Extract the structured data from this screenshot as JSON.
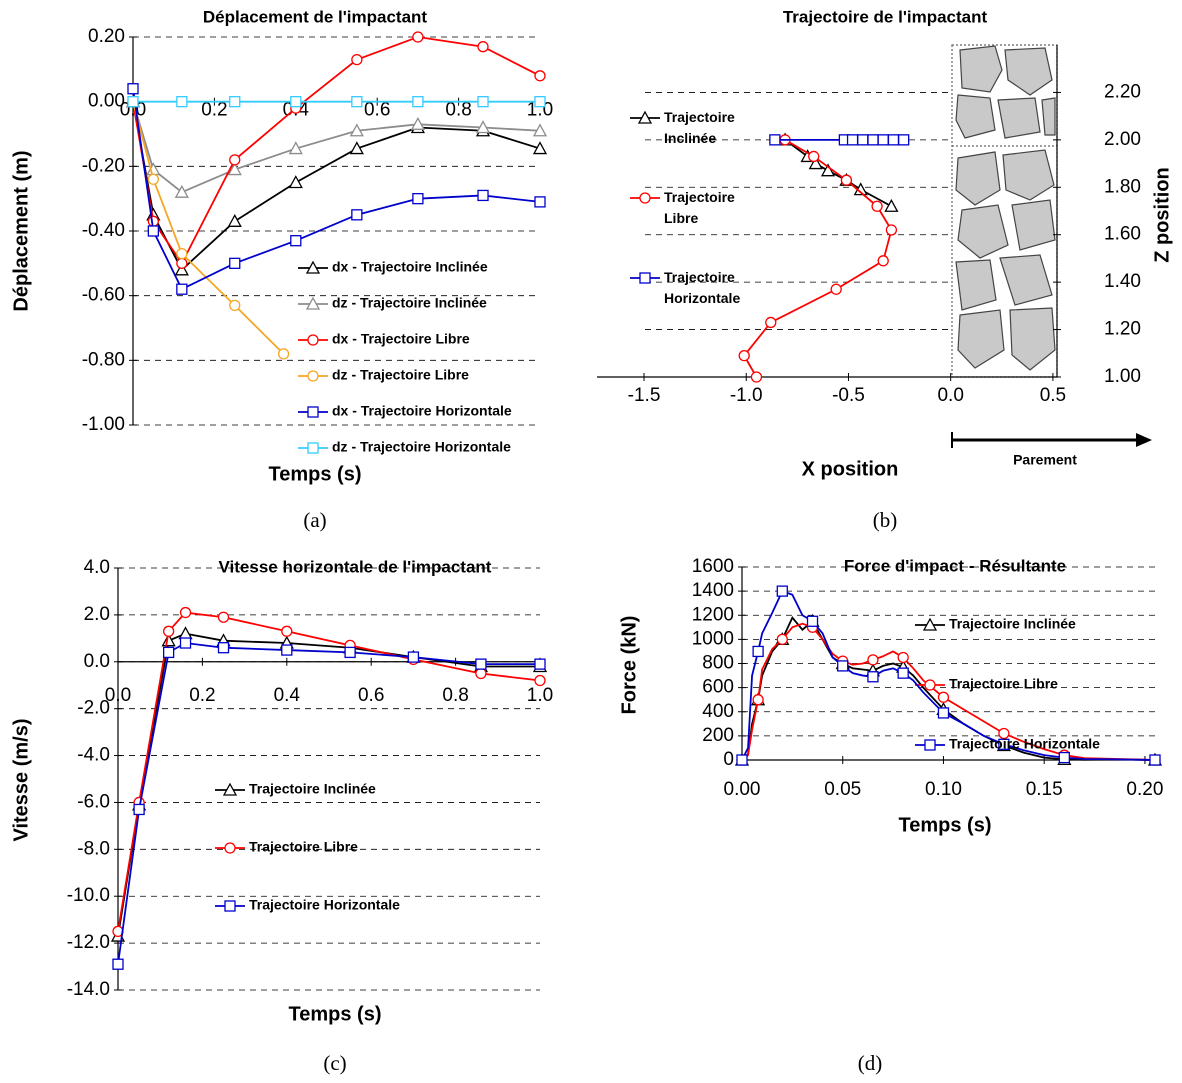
{
  "chart_data": [
    {
      "type": "line",
      "title": "Déplacement de l'impactant",
      "x_label": "Temps (s)",
      "y_label": "Déplacement (m)",
      "caption": "(a)",
      "xlim": [
        0,
        1.0
      ],
      "ylim": [
        -1.0,
        0.2
      ],
      "xticks": [
        {
          "value": 0,
          "label": "0.0"
        },
        0.2,
        0.4,
        0.6,
        0.8,
        {
          "value": 1,
          "label": "1.0"
        }
      ],
      "yticks": [
        {
          "value": -1,
          "label": "-1.00"
        },
        {
          "value": -0.8,
          "label": "-0.80"
        },
        {
          "value": -0.6,
          "label": "-0.60"
        },
        {
          "value": -0.4,
          "label": "-0.40"
        },
        {
          "value": -0.2,
          "label": "-0.20"
        },
        {
          "value": 0,
          "label": "0.00"
        },
        {
          "value": 0.2,
          "label": "0.20"
        }
      ],
      "grid": true,
      "legend": "lower right",
      "series": [
        {
          "name": "dx - Trajectoire Inclinée",
          "color": "#000000",
          "marker": "triangle",
          "x": [
            0,
            0.05,
            0.12,
            0.25,
            0.4,
            0.55,
            0.7,
            0.86,
            1
          ],
          "values": [
            0,
            -0.35,
            -0.52,
            -0.37,
            -0.25,
            -0.145,
            -0.08,
            -0.09,
            -0.145
          ]
        },
        {
          "name": "dz - Trajectoire Inclinée",
          "color": "#8c8c8c",
          "marker": "triangle",
          "x": [
            0,
            0.05,
            0.12,
            0.25,
            0.4,
            0.55,
            0.7,
            0.86,
            1
          ],
          "values": [
            0,
            -0.21,
            -0.28,
            -0.21,
            -0.145,
            -0.09,
            -0.07,
            -0.08,
            -0.09
          ]
        },
        {
          "name": "dx - Trajectoire Libre",
          "color": "#ff0000",
          "marker": "circle",
          "x": [
            0,
            0.05,
            0.12,
            0.25,
            0.4,
            0.55,
            0.7,
            0.86,
            1
          ],
          "values": [
            0,
            -0.37,
            -0.5,
            -0.18,
            -0.02,
            0.13,
            0.2,
            0.17,
            0.08
          ]
        },
        {
          "name": "dz - Trajectoire Libre",
          "color": "#f5a623",
          "marker": "circle",
          "x": [
            0,
            0.05,
            0.12,
            0.25,
            0.37
          ],
          "values": [
            0,
            -0.24,
            -0.47,
            -0.63,
            -0.78
          ]
        },
        {
          "name": "dx - Trajectoire Horizontale",
          "color": "#0000cc",
          "marker": "square",
          "x": [
            0,
            0.05,
            0.12,
            0.25,
            0.4,
            0.55,
            0.7,
            0.86,
            1
          ],
          "values": [
            0.04,
            -0.4,
            -0.58,
            -0.5,
            -0.43,
            -0.35,
            -0.3,
            -0.29,
            -0.31
          ]
        },
        {
          "name": "dz - Trajectoire Horizontale",
          "color": "#33ccff",
          "marker": "square",
          "x": [
            0,
            0.12,
            0.25,
            0.4,
            0.55,
            0.7,
            0.86,
            1
          ],
          "values": [
            0,
            0,
            0,
            0,
            0,
            0,
            0,
            0
          ]
        }
      ]
    },
    {
      "type": "line",
      "title": "Trajectoire de l'impactant",
      "x_label": "X position",
      "y_label": "Z position",
      "caption": "(b)",
      "annotation": "Parement",
      "xlim": [
        -1.73,
        0.52
      ],
      "ylim": [
        1.0,
        2.4
      ],
      "xticks": [
        -1.5,
        {
          "value": -1,
          "label": "-1.0"
        },
        -0.5,
        {
          "value": 0,
          "label": "0.0"
        },
        0.5
      ],
      "yticks": [
        {
          "value": 1,
          "label": "1.00"
        },
        {
          "value": 1.2,
          "label": "1.20"
        },
        {
          "value": 1.4,
          "label": "1.40"
        },
        {
          "value": 1.6,
          "label": "1.60"
        },
        {
          "value": 1.8,
          "label": "1.80"
        },
        {
          "value": 2,
          "label": "2.00"
        },
        {
          "value": 2.2,
          "label": "2.20"
        }
      ],
      "grid": true,
      "legend": "left",
      "y_axis_side": "right",
      "series": [
        {
          "name": "Trajectoire Inclinée",
          "color": "#000000",
          "marker": "triangle",
          "x": [
            -0.81,
            -0.7,
            -0.66,
            -0.6,
            -0.51,
            -0.44,
            -0.29
          ],
          "values": [
            2.0,
            1.93,
            1.9,
            1.87,
            1.83,
            1.79,
            1.72
          ]
        },
        {
          "name": "Trajectoire Libre",
          "color": "#ff0000",
          "marker": "circle",
          "x": [
            -0.81,
            -0.67,
            -0.51,
            -0.36,
            -0.29,
            -0.33,
            -0.56,
            -0.88,
            -1.01,
            -0.95
          ],
          "values": [
            2.0,
            1.93,
            1.83,
            1.72,
            1.62,
            1.49,
            1.37,
            1.23,
            1.09,
            1.0
          ]
        },
        {
          "name": "Trajectoire Horizontale",
          "color": "#0000cc",
          "marker": "square",
          "x": [
            -0.86,
            -0.52,
            -0.48,
            -0.43,
            -0.38,
            -0.33,
            -0.28,
            -0.23
          ],
          "values": [
            2.0,
            2.0,
            2.0,
            2.0,
            2.0,
            2.0,
            2.0,
            2.0
          ]
        }
      ]
    },
    {
      "type": "line",
      "title": "Vitesse horizontale de l'impactant",
      "x_label": "Temps (s)",
      "y_label": "Vitesse (m/s)",
      "caption": "(c)",
      "xlim": [
        0,
        1.0
      ],
      "ylim": [
        -14.0,
        4.0
      ],
      "xticks": [
        {
          "value": 0,
          "label": "0.0"
        },
        0.2,
        0.4,
        0.6,
        0.8,
        {
          "value": 1,
          "label": "1.0"
        }
      ],
      "yticks": [
        {
          "value": -14,
          "label": "-14.0"
        },
        {
          "value": -12,
          "label": "-12.0"
        },
        {
          "value": -10,
          "label": "-10.0"
        },
        {
          "value": -8,
          "label": "-8.0"
        },
        {
          "value": -6,
          "label": "-6.0"
        },
        {
          "value": -4,
          "label": "-4.0"
        },
        {
          "value": -2,
          "label": "-2.0"
        },
        {
          "value": 0,
          "label": "0.0"
        },
        {
          "value": 2,
          "label": "2.0"
        },
        {
          "value": 4,
          "label": "4.0"
        }
      ],
      "grid": true,
      "legend": "center left",
      "series": [
        {
          "name": "Trajectoire Inclinée",
          "color": "#000000",
          "marker": "triangle",
          "x": [
            0,
            0.05,
            0.12,
            0.16,
            0.25,
            0.4,
            0.55,
            0.7,
            0.86,
            1
          ],
          "values": [
            -11.7,
            -6.1,
            0.9,
            1.2,
            0.9,
            0.8,
            0.6,
            0.2,
            -0.2,
            -0.2
          ]
        },
        {
          "name": "Trajectoire Libre",
          "color": "#ff0000",
          "marker": "circle",
          "x": [
            0,
            0.05,
            0.12,
            0.16,
            0.25,
            0.4,
            0.55,
            0.7,
            0.86,
            1
          ],
          "values": [
            -11.5,
            -6.0,
            1.3,
            2.1,
            1.9,
            1.3,
            0.7,
            0.1,
            -0.5,
            -0.8
          ]
        },
        {
          "name": "Trajectoire Horizontale",
          "color": "#0000cc",
          "marker": "square",
          "x": [
            0,
            0.05,
            0.12,
            0.16,
            0.25,
            0.4,
            0.55,
            0.7,
            0.86,
            1
          ],
          "values": [
            -12.9,
            -6.3,
            0.4,
            0.8,
            0.6,
            0.5,
            0.4,
            0.2,
            -0.1,
            -0.1
          ]
        }
      ]
    },
    {
      "type": "line",
      "title": "Force d'impact - Résultante",
      "x_label": "Temps (s)",
      "y_label": "Force (kN)",
      "caption": "(d)",
      "xlim": [
        0,
        0.205
      ],
      "ylim": [
        0,
        1600
      ],
      "xticks": [
        {
          "value": 0,
          "label": "0.00"
        },
        {
          "value": 0.05,
          "label": "0.05"
        },
        {
          "value": 0.1,
          "label": "0.10"
        },
        {
          "value": 0.15,
          "label": "0.15"
        },
        {
          "value": 0.2,
          "label": "0.20"
        }
      ],
      "yticks": [
        0,
        200,
        400,
        600,
        800,
        1000,
        1200,
        1400,
        1600
      ],
      "grid": true,
      "legend": "upper right",
      "series": [
        {
          "name": "Trajectoire Inclinée",
          "color": "#000000",
          "marker": "triangle",
          "x": [
            0,
            0.003,
            0.005,
            0.008,
            0.01,
            0.015,
            0.02,
            0.025,
            0.03,
            0.035,
            0.04,
            0.045,
            0.05,
            0.055,
            0.06,
            0.065,
            0.07,
            0.075,
            0.08,
            0.085,
            0.09,
            0.1,
            0.11,
            0.12,
            0.13,
            0.14,
            0.15,
            0.16,
            0.17,
            0.187,
            0.205
          ],
          "values": [
            0,
            50,
            300,
            500,
            700,
            900,
            1000,
            1180,
            1080,
            1150,
            1000,
            850,
            800,
            760,
            750,
            740,
            780,
            800,
            770,
            700,
            600,
            420,
            300,
            200,
            120,
            60,
            20,
            5,
            2,
            5,
            0
          ]
        },
        {
          "name": "Trajectoire Libre",
          "color": "#ff0000",
          "marker": "circle",
          "x": [
            0,
            0.003,
            0.005,
            0.008,
            0.01,
            0.015,
            0.02,
            0.025,
            0.03,
            0.035,
            0.04,
            0.045,
            0.05,
            0.055,
            0.06,
            0.065,
            0.07,
            0.075,
            0.08,
            0.085,
            0.09,
            0.1,
            0.11,
            0.12,
            0.13,
            0.14,
            0.15,
            0.16,
            0.17,
            0.187,
            0.205
          ],
          "values": [
            0,
            40,
            250,
            500,
            750,
            920,
            1000,
            1100,
            1130,
            1100,
            1000,
            880,
            820,
            790,
            800,
            830,
            860,
            900,
            850,
            760,
            660,
            520,
            420,
            320,
            220,
            150,
            90,
            40,
            15,
            8,
            0
          ]
        },
        {
          "name": "Trajectoire Horizontale",
          "color": "#0000cc",
          "marker": "square",
          "x": [
            0,
            0.003,
            0.005,
            0.008,
            0.01,
            0.015,
            0.02,
            0.025,
            0.03,
            0.035,
            0.04,
            0.045,
            0.05,
            0.055,
            0.06,
            0.065,
            0.07,
            0.075,
            0.08,
            0.085,
            0.09,
            0.1,
            0.11,
            0.12,
            0.13,
            0.14,
            0.15,
            0.16,
            0.17,
            0.187,
            0.205
          ],
          "values": [
            0,
            100,
            700,
            900,
            1050,
            1220,
            1400,
            1370,
            1200,
            1150,
            1050,
            850,
            780,
            720,
            700,
            690,
            740,
            760,
            720,
            660,
            560,
            390,
            300,
            200,
            130,
            80,
            40,
            20,
            8,
            5,
            0
          ]
        }
      ]
    }
  ]
}
